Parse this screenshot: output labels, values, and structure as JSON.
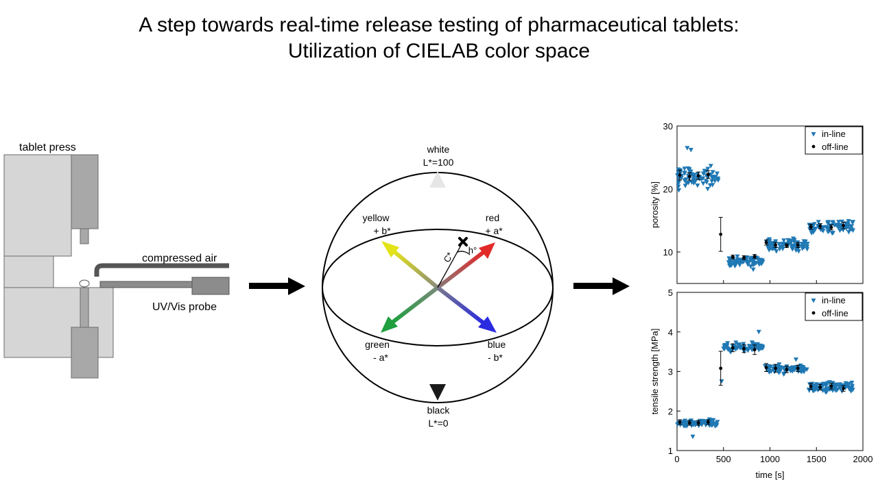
{
  "title": {
    "line1": "A step towards real-time release testing of pharmaceutical tablets:",
    "line2": "Utilization of CIELAB color space"
  },
  "press": {
    "label": "tablet press",
    "air_label": "compressed air",
    "probe_label": "UV/Vis probe"
  },
  "sphere": {
    "white": "white",
    "white_value": "L*=100",
    "black": "black",
    "black_value": "L*=0",
    "yellow": "yellow",
    "yellow_axis": "+ b*",
    "red": "red",
    "red_axis": "+ a*",
    "green": "green",
    "green_axis": "- a*",
    "blue": "blue",
    "blue_axis": "- b*",
    "chroma": "C*",
    "hue": "h°"
  },
  "colors": {
    "inline": "#1f78b4",
    "offline": "#000000",
    "press_light": "#d6d6d6",
    "press_dark": "#a8a8a8"
  },
  "chart_data": [
    {
      "type": "scatter",
      "xlim": [
        0,
        2000
      ],
      "ylim": [
        5,
        30
      ],
      "yticks": [
        10,
        20,
        30
      ],
      "ylabel": "porosity [%]",
      "legend": "top-right",
      "series": [
        {
          "name": "in-line",
          "marker": "triangle-down",
          "segments": [
            {
              "x": [
                0,
                450
              ],
              "mean": 22,
              "spread": 1.4
            },
            {
              "x": [
                550,
                930
              ],
              "mean": 8.5,
              "spread": 0.6
            },
            {
              "x": [
                960,
                1410
              ],
              "mean": 11,
              "spread": 0.8
            },
            {
              "x": [
                1420,
                1900
              ],
              "mean": 14,
              "spread": 0.8
            }
          ],
          "outliers": [
            {
              "x": 110,
              "y": 26.5
            },
            {
              "x": 150,
              "y": 26.2
            },
            {
              "x": 20,
              "y": 19.8
            },
            {
              "x": 330,
              "y": 20
            },
            {
              "x": 820,
              "y": 7.2
            }
          ]
        },
        {
          "name": "off-line",
          "marker": "circle",
          "points": [
            {
              "x": 30,
              "y": 22.2,
              "err": 0.8
            },
            {
              "x": 135,
              "y": 22.0,
              "err": 0.6
            },
            {
              "x": 230,
              "y": 22.1,
              "err": 0.6
            },
            {
              "x": 335,
              "y": 22.3,
              "err": 0.6
            },
            {
              "x": 470,
              "y": 12.8,
              "err": 2.7
            },
            {
              "x": 600,
              "y": 9.2,
              "err": 0.3
            },
            {
              "x": 720,
              "y": 9.1,
              "err": 0.3
            },
            {
              "x": 835,
              "y": 9.3,
              "err": 0.3
            },
            {
              "x": 960,
              "y": 11.5,
              "err": 0.4
            },
            {
              "x": 1060,
              "y": 11.1,
              "err": 0.4
            },
            {
              "x": 1180,
              "y": 11.0,
              "err": 0.3
            },
            {
              "x": 1300,
              "y": 11.1,
              "err": 0.4
            },
            {
              "x": 1440,
              "y": 14.0,
              "err": 0.4
            },
            {
              "x": 1540,
              "y": 14.1,
              "err": 0.4
            },
            {
              "x": 1660,
              "y": 13.9,
              "err": 0.4
            },
            {
              "x": 1790,
              "y": 14.2,
              "err": 0.5
            }
          ]
        }
      ]
    },
    {
      "type": "scatter",
      "xlim": [
        0,
        2000
      ],
      "ylim": [
        1,
        5
      ],
      "xticks": [
        0,
        500,
        1000,
        1500,
        2000
      ],
      "yticks": [
        1,
        2,
        3,
        4,
        5
      ],
      "xlabel": "time [s]",
      "ylabel": "tensile strength [MPa]",
      "legend": "top-right",
      "series": [
        {
          "name": "in-line",
          "marker": "triangle-down",
          "segments": [
            {
              "x": [
                0,
                450
              ],
              "mean": 1.7,
              "spread": 0.1
            },
            {
              "x": [
                500,
                930
              ],
              "mean": 3.6,
              "spread": 0.1
            },
            {
              "x": [
                940,
                1400
              ],
              "mean": 3.05,
              "spread": 0.1
            },
            {
              "x": [
                1410,
                1900
              ],
              "mean": 2.6,
              "spread": 0.1
            }
          ],
          "outliers": [
            {
              "x": 170,
              "y": 1.35
            },
            {
              "x": 880,
              "y": 4.0
            },
            {
              "x": 480,
              "y": 2.75
            },
            {
              "x": 1280,
              "y": 3.3
            }
          ]
        },
        {
          "name": "off-line",
          "marker": "circle",
          "points": [
            {
              "x": 30,
              "y": 1.72,
              "err": 0.06
            },
            {
              "x": 135,
              "y": 1.7,
              "err": 0.06
            },
            {
              "x": 230,
              "y": 1.7,
              "err": 0.06
            },
            {
              "x": 335,
              "y": 1.72,
              "err": 0.06
            },
            {
              "x": 470,
              "y": 3.08,
              "err": 0.43
            },
            {
              "x": 600,
              "y": 3.6,
              "err": 0.1
            },
            {
              "x": 720,
              "y": 3.58,
              "err": 0.1
            },
            {
              "x": 835,
              "y": 3.55,
              "err": 0.12
            },
            {
              "x": 960,
              "y": 3.1,
              "err": 0.1
            },
            {
              "x": 1060,
              "y": 3.08,
              "err": 0.1
            },
            {
              "x": 1180,
              "y": 3.05,
              "err": 0.08
            },
            {
              "x": 1300,
              "y": 3.08,
              "err": 0.08
            },
            {
              "x": 1440,
              "y": 2.62,
              "err": 0.07
            },
            {
              "x": 1540,
              "y": 2.6,
              "err": 0.07
            },
            {
              "x": 1660,
              "y": 2.63,
              "err": 0.07
            },
            {
              "x": 1790,
              "y": 2.57,
              "err": 0.07
            }
          ]
        }
      ]
    }
  ]
}
